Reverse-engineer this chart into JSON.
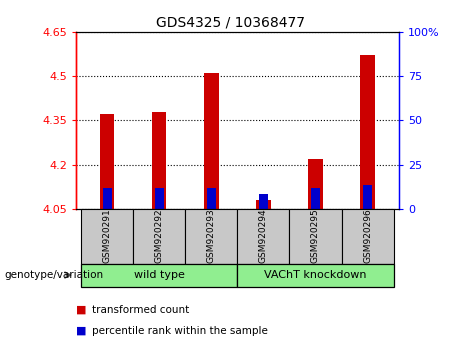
{
  "title": "GDS4325 / 10368477",
  "categories": [
    "GSM920291",
    "GSM920292",
    "GSM920293",
    "GSM920294",
    "GSM920295",
    "GSM920296"
  ],
  "red_values": [
    4.37,
    4.38,
    4.51,
    4.08,
    4.22,
    4.57
  ],
  "blue_values": [
    4.12,
    4.12,
    4.12,
    4.1,
    4.12,
    4.13
  ],
  "red_base": 4.05,
  "ylim_left": [
    4.05,
    4.65
  ],
  "ylim_right": [
    0,
    100
  ],
  "yticks_left": [
    4.05,
    4.2,
    4.35,
    4.5,
    4.65
  ],
  "yticks_right": [
    0,
    25,
    50,
    75,
    100
  ],
  "ytick_labels_left": [
    "4.05",
    "4.2",
    "4.35",
    "4.5",
    "4.65"
  ],
  "ytick_labels_right": [
    "0",
    "25",
    "50",
    "75",
    "100%"
  ],
  "groups": [
    {
      "label": "wild type",
      "indices": [
        0,
        1,
        2
      ],
      "color": "#90EE90"
    },
    {
      "label": "VAChT knockdown",
      "indices": [
        3,
        4,
        5
      ],
      "color": "#90EE90"
    }
  ],
  "group_box_color": "#C8C8C8",
  "bar_width": 0.5,
  "red_color": "#CC0000",
  "blue_color": "#0000CC",
  "legend_red_label": "transformed count",
  "legend_blue_label": "percentile rank within the sample",
  "genotype_label": "genotype/variation",
  "left_axis_color": "red",
  "right_axis_color": "blue"
}
